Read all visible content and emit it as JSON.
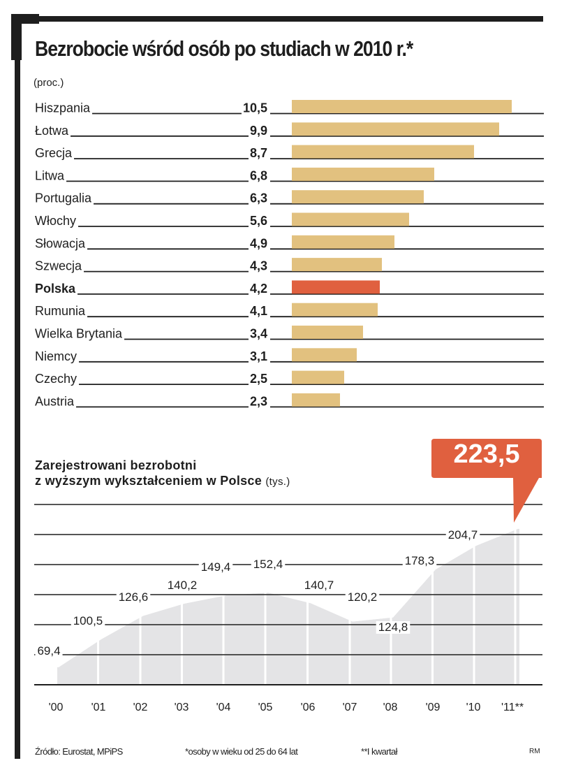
{
  "colors": {
    "bar": "#e2c17f",
    "highlight": "#e0603f",
    "area": "#e4e4e6",
    "ink": "#1e1e1e",
    "callout": "#e0603f"
  },
  "chart_data": [
    {
      "type": "bar",
      "orientation": "horizontal",
      "title": "Bezrobocie wśród osób po studiach w 2010 r.*",
      "unit": "(proc.)",
      "categories": [
        "Hiszpania",
        "Łotwa",
        "Grecja",
        "Litwa",
        "Portugalia",
        "Włochy",
        "Słowacja",
        "Szwecja",
        "Polska",
        "Rumunia",
        "Wielka Brytania",
        "Niemcy",
        "Czechy",
        "Austria"
      ],
      "values": [
        10.5,
        9.9,
        8.7,
        6.8,
        6.3,
        5.6,
        4.9,
        4.3,
        4.2,
        4.1,
        3.4,
        3.1,
        2.5,
        2.3
      ],
      "value_labels": [
        "10,5",
        "9,9",
        "8,7",
        "6,8",
        "6,3",
        "5,6",
        "4,9",
        "4,3",
        "4,2",
        "4,1",
        "3,4",
        "3,1",
        "2,5",
        "2,3"
      ],
      "highlight": "Polska",
      "xlim": [
        0,
        10.5
      ],
      "grid": false
    },
    {
      "type": "area",
      "title": "Zarejestrowani bezrobotni z wyższym wykształceniem w Polsce",
      "title_line1": "Zarejestrowani bezrobotni",
      "title_line2": "z wyższym wykształceniem w Polsce",
      "unit": "(tys.)",
      "x": [
        "'00",
        "'01",
        "'02",
        "'03",
        "'04",
        "'05",
        "'06",
        "'07",
        "'08",
        "'09",
        "'10",
        "'11**"
      ],
      "values": [
        69.4,
        100.5,
        126.6,
        140.2,
        149.4,
        152.4,
        140.7,
        120.2,
        124.8,
        178.3,
        204.7,
        223.5
      ],
      "value_labels": [
        "69,4",
        "100,5",
        "126,6",
        "140,2",
        "149,4",
        "152,4",
        "140,7",
        "120,2",
        "124,8",
        "178,3",
        "204,7",
        "223,5"
      ],
      "highlight_label": "223,5",
      "grid": true
    }
  ],
  "footer": {
    "source": "Źródło: Eurostat, MPiPS",
    "note1": "*osoby w wieku od 25 do 64 lat",
    "note2": "**I kwartał",
    "credit": "RM"
  }
}
